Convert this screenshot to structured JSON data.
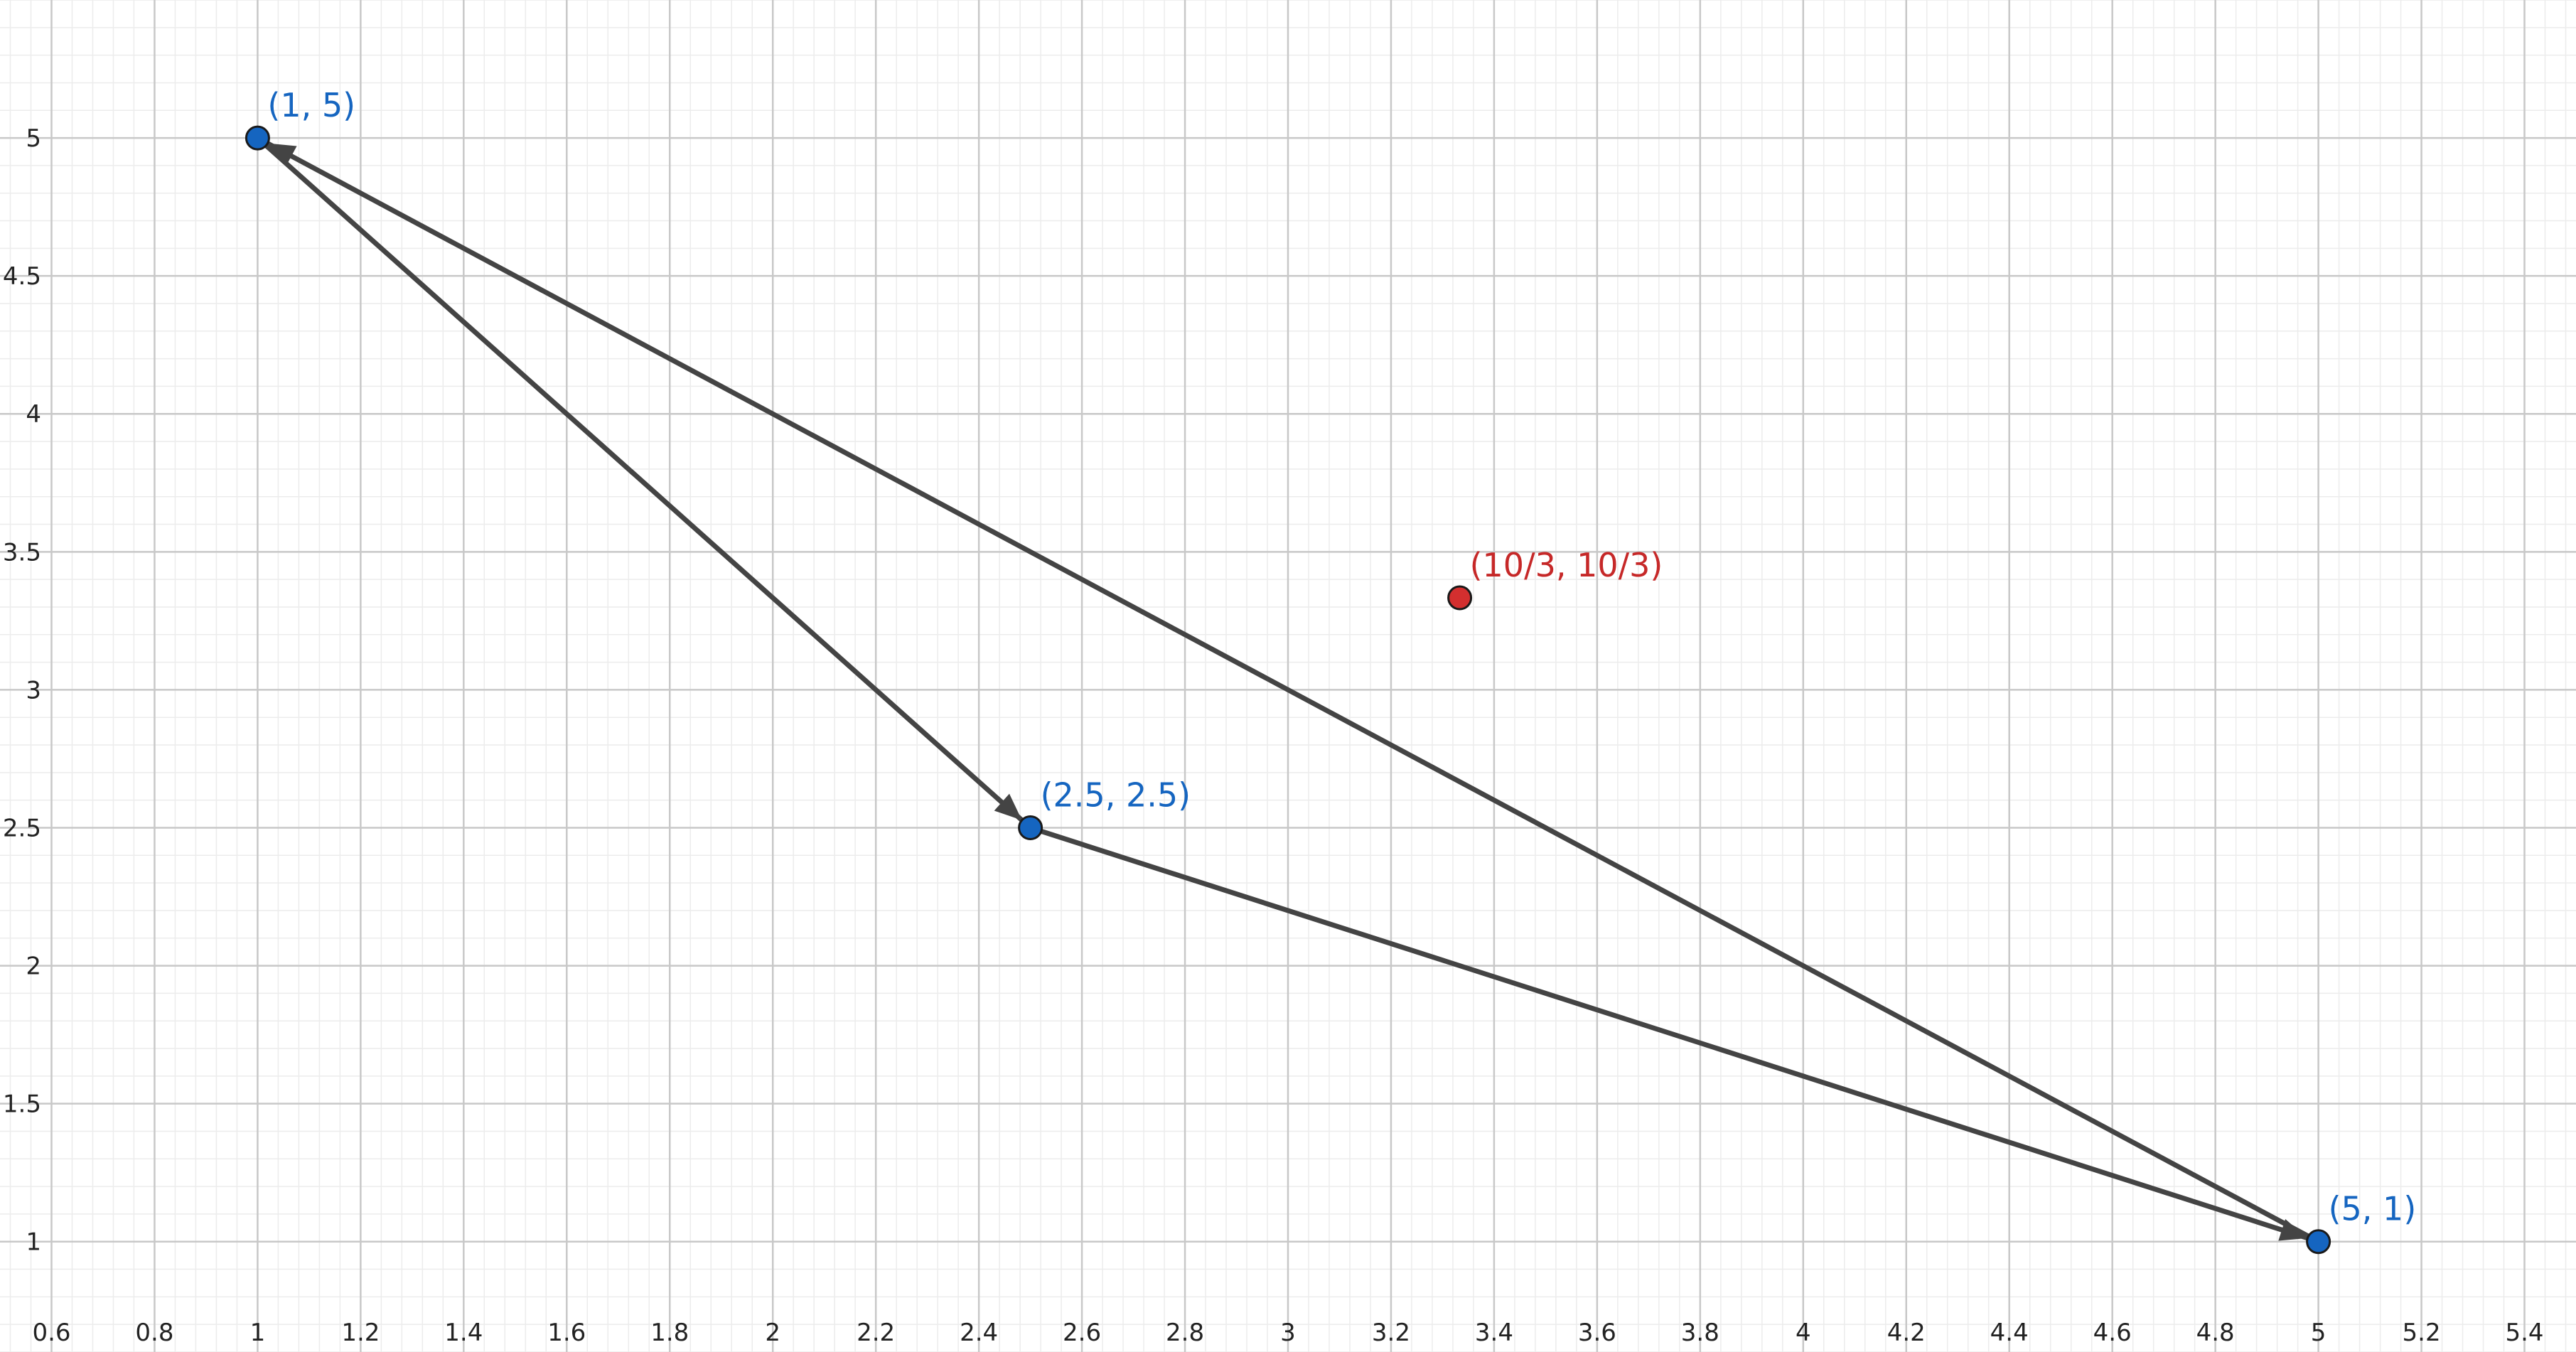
{
  "view": {
    "xmin": 0.5,
    "xmax": 5.5,
    "ymin": 0.6,
    "ymax": 5.5
  },
  "axes": {
    "x_ticks": [
      "0.6",
      "0.8",
      "1",
      "1.2",
      "1.4",
      "1.6",
      "1.8",
      "2",
      "2.2",
      "2.4",
      "2.6",
      "2.8",
      "3",
      "3.2",
      "3.4",
      "3.6",
      "3.8",
      "4",
      "4.2",
      "4.4",
      "4.6",
      "4.8",
      "5",
      "5.2",
      "5.4"
    ],
    "y_ticks": [
      "1",
      "1.5",
      "2",
      "2.5",
      "3",
      "3.5",
      "4",
      "4.5",
      "5"
    ],
    "grid": true
  },
  "colors": {
    "major_grid": "#c8c8c8",
    "minor_grid": "#ececec",
    "vector": "#444444",
    "blue_point": "#1565c0",
    "blue_label": "#1565c0",
    "red_point": "#d32f2f",
    "red_label": "#c62828"
  },
  "points": [
    {
      "id": "p1",
      "x": 1,
      "y": 5,
      "label": "(1, 5)",
      "color": "blue"
    },
    {
      "id": "p2",
      "x": 2.5,
      "y": 2.5,
      "label": "(2.5, 2.5)",
      "color": "blue"
    },
    {
      "id": "p3",
      "x": 5,
      "y": 1,
      "label": "(5, 1)",
      "color": "blue"
    },
    {
      "id": "p4",
      "x": 3.3333333,
      "y": 3.3333333,
      "label": "(10/3, 10/3)",
      "color": "red"
    }
  ],
  "vectors": [
    {
      "from": [
        1,
        5
      ],
      "to": [
        2.5,
        2.5
      ]
    },
    {
      "from": [
        2.5,
        2.5
      ],
      "to": [
        5,
        1
      ]
    },
    {
      "from": [
        5,
        1
      ],
      "to": [
        1,
        5
      ]
    }
  ]
}
